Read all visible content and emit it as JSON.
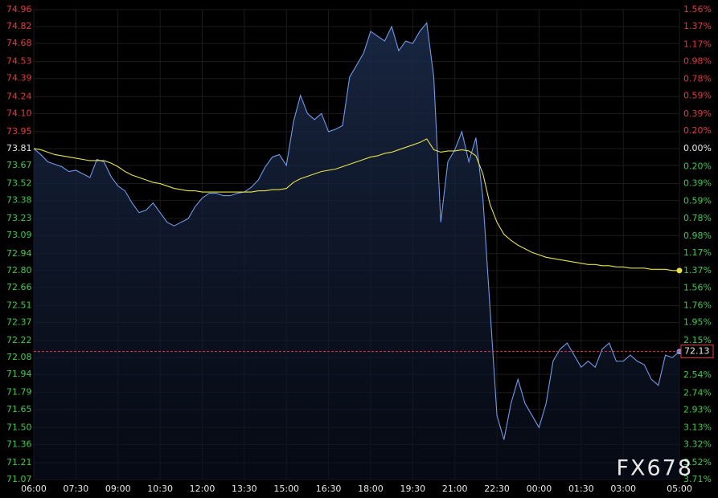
{
  "chart_data": {
    "type": "line",
    "watermark": "FX678",
    "x": [
      "06:00",
      "06:15",
      "06:30",
      "06:45",
      "07:00",
      "07:15",
      "07:30",
      "07:45",
      "08:00",
      "08:15",
      "08:30",
      "08:45",
      "09:00",
      "09:15",
      "09:30",
      "09:45",
      "10:00",
      "10:15",
      "10:30",
      "10:45",
      "11:00",
      "11:15",
      "11:30",
      "11:45",
      "12:00",
      "12:15",
      "12:30",
      "12:45",
      "13:00",
      "13:15",
      "13:30",
      "13:45",
      "14:00",
      "14:15",
      "14:30",
      "14:45",
      "15:00",
      "15:15",
      "15:30",
      "15:45",
      "16:00",
      "16:15",
      "16:30",
      "16:45",
      "17:00",
      "17:15",
      "17:30",
      "17:45",
      "18:00",
      "18:15",
      "18:30",
      "18:45",
      "19:00",
      "19:15",
      "19:30",
      "19:45",
      "20:00",
      "20:15",
      "20:30",
      "20:45",
      "21:00",
      "21:15",
      "21:30",
      "21:45",
      "22:00",
      "22:15",
      "22:30",
      "22:45",
      "23:00",
      "23:15",
      "23:30",
      "23:45",
      "00:00",
      "00:15",
      "00:30",
      "00:45",
      "01:00",
      "01:15",
      "01:30",
      "01:45",
      "02:00",
      "02:15",
      "02:30",
      "02:45",
      "03:00",
      "03:15",
      "03:30",
      "03:45",
      "04:00",
      "04:15",
      "04:30",
      "04:45",
      "05:00"
    ],
    "series": [
      {
        "color": "#6f9be8",
        "values": [
          73.81,
          73.76,
          73.7,
          73.68,
          73.66,
          73.62,
          73.63,
          73.6,
          73.57,
          73.72,
          73.7,
          73.58,
          73.5,
          73.46,
          73.36,
          73.28,
          73.3,
          73.36,
          73.28,
          73.2,
          73.17,
          73.2,
          73.23,
          73.33,
          73.4,
          73.44,
          73.44,
          73.42,
          73.42,
          73.44,
          73.45,
          73.49,
          73.55,
          73.66,
          73.74,
          73.76,
          73.67,
          74.03,
          74.25,
          74.1,
          74.05,
          74.1,
          73.95,
          73.97,
          74.0,
          74.4,
          74.5,
          74.6,
          74.78,
          74.74,
          74.7,
          74.82,
          74.62,
          74.7,
          74.68,
          74.78,
          74.85,
          74.4,
          73.2,
          73.7,
          73.8,
          73.95,
          73.7,
          73.9,
          73.4,
          72.5,
          71.6,
          71.4,
          71.7,
          71.9,
          71.7,
          71.6,
          71.5,
          71.7,
          72.05,
          72.15,
          72.2,
          72.1,
          72.0,
          72.05,
          72.0,
          72.15,
          72.2,
          72.05,
          72.05,
          72.1,
          72.05,
          72.02,
          71.9,
          71.85,
          72.1,
          72.08,
          72.13
        ]
      },
      {
        "color": "#e8e24a",
        "values": [
          73.81,
          73.8,
          73.78,
          73.76,
          73.75,
          73.74,
          73.73,
          73.72,
          73.71,
          73.71,
          73.71,
          73.69,
          73.66,
          73.62,
          73.59,
          73.57,
          73.55,
          73.53,
          73.52,
          73.5,
          73.48,
          73.47,
          73.46,
          73.46,
          73.45,
          73.45,
          73.45,
          73.45,
          73.45,
          73.45,
          73.45,
          73.45,
          73.46,
          73.46,
          73.47,
          73.47,
          73.48,
          73.53,
          73.56,
          73.58,
          73.6,
          73.62,
          73.63,
          73.64,
          73.66,
          73.68,
          73.7,
          73.72,
          73.74,
          73.75,
          73.77,
          73.78,
          73.8,
          73.82,
          73.84,
          73.86,
          73.89,
          73.8,
          73.78,
          73.79,
          73.79,
          73.8,
          73.79,
          73.75,
          73.6,
          73.35,
          73.2,
          73.1,
          73.05,
          73.01,
          72.98,
          72.95,
          72.93,
          72.91,
          72.9,
          72.89,
          72.88,
          72.87,
          72.86,
          72.85,
          72.85,
          72.84,
          72.84,
          72.83,
          72.83,
          72.82,
          72.82,
          72.82,
          72.81,
          72.81,
          72.81,
          72.8,
          72.8
        ]
      }
    ],
    "xticks": [
      "06:00",
      "07:30",
      "09:00",
      "10:30",
      "12:00",
      "13:30",
      "15:00",
      "16:30",
      "18:00",
      "19:30",
      "21:00",
      "22:30",
      "00:00",
      "01:30",
      "03:00",
      "05:00"
    ],
    "ylim": [
      71.07,
      74.96
    ],
    "yticks": [
      74.96,
      74.82,
      74.68,
      74.53,
      74.39,
      74.24,
      {
        "value": 74.1,
        "label": "74.10"
      },
      73.95,
      73.81,
      73.67,
      73.52,
      73.38,
      73.23,
      73.09,
      72.94,
      {
        "value": 72.8,
        "label": "72.80"
      },
      72.66,
      72.51,
      72.37,
      72.22,
      72.08,
      71.94,
      71.79,
      71.65,
      {
        "value": 71.5,
        "label": "71.50"
      },
      71.36,
      71.21,
      71.07
    ],
    "y2lim": [
      -3.71,
      1.56
    ],
    "y2ticks": [
      {
        "value": 1.56,
        "label": "1.56%"
      },
      {
        "value": 1.37,
        "label": "1.37%"
      },
      {
        "value": 1.17,
        "label": "1.17%"
      },
      {
        "value": 0.98,
        "label": "0.98%"
      },
      {
        "value": 0.78,
        "label": "0.78%"
      },
      {
        "value": 0.59,
        "label": "0.59%"
      },
      {
        "value": 0.39,
        "label": "0.39%"
      },
      {
        "value": 0.2,
        "label": "0.20%"
      },
      {
        "value": 0,
        "label": "0.00%"
      },
      {
        "value": -0.2,
        "label": "0.20%"
      },
      {
        "value": -0.39,
        "label": "0.39%"
      },
      {
        "value": -0.59,
        "label": "0.59%"
      },
      {
        "value": -0.78,
        "label": "0.78%"
      },
      {
        "value": -0.98,
        "label": "0.98%"
      },
      {
        "value": -1.17,
        "label": "1.17%"
      },
      {
        "value": -1.37,
        "label": "1.37%"
      },
      {
        "value": -1.56,
        "label": "1.56%"
      },
      {
        "value": -1.76,
        "label": "1.76%"
      },
      {
        "value": -1.95,
        "label": "1.95%"
      },
      {
        "value": -2.15,
        "label": "2.15%"
      },
      {
        "value": -2.54,
        "label": "2.54%"
      },
      {
        "value": -2.74,
        "label": "2.74%"
      },
      {
        "value": -2.93,
        "label": "2.93%"
      },
      {
        "value": -3.13,
        "label": "3.13%"
      },
      {
        "value": -3.32,
        "label": "3.32%"
      },
      {
        "value": -3.52,
        "label": "3.52%"
      },
      {
        "value": -3.71,
        "label": "3.71%"
      }
    ],
    "grid": true,
    "up_color": "#e8383c",
    "down_color": "#3ecb4a",
    "neutral_color": "#e8e8e8"
  }
}
